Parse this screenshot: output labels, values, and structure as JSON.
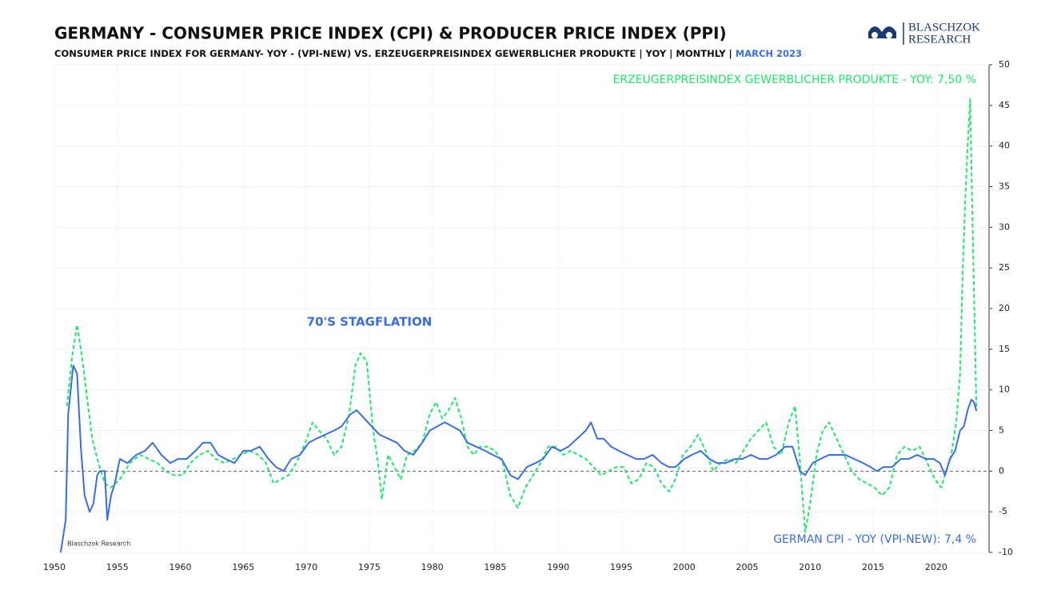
{
  "chart_data": {
    "type": "line",
    "title": "GERMANY - CONSUMER PRICE INDEX (CPI) & PRODUCER PRICE INDEX (PPI)",
    "subtitle": "CONSUMER PRICE INDEX FOR GERMANY- YOY - (VPI-NEW) VS. ERZEUGERPREISINDEX GEWERBLICHER PRODUKTE  | YOY | MONTHLY |",
    "date_label": "MARCH 2023",
    "logo": {
      "line1": "BLASCHZOK",
      "line2": "RESEARCH"
    },
    "watermark": "Blaschzok Research",
    "annotations": [
      {
        "text": "70'S STAGFLATION",
        "color": "#3a6ee0"
      }
    ],
    "xlim": [
      1950,
      2024.2
    ],
    "xticks": [
      1950,
      1955,
      1960,
      1965,
      1970,
      1975,
      1980,
      1985,
      1990,
      1995,
      2000,
      2005,
      2010,
      2015,
      2020
    ],
    "ylim": [
      -10,
      50
    ],
    "yticks": [
      -10,
      -5,
      0,
      5,
      10,
      15,
      20,
      25,
      30,
      35,
      40,
      45,
      50
    ],
    "grid": true,
    "series": [
      {
        "name": "GERMAN CPI - YOY (VPI-NEW): 7,4 %",
        "color": "#3a6ee0",
        "dash": false,
        "x": [
          1950.5,
          1950.9,
          1951.1,
          1951.5,
          1951.8,
          1952.1,
          1952.4,
          1952.8,
          1953.1,
          1953.4,
          1953.6,
          1954.0,
          1954.2,
          1954.5,
          1954.8,
          1955.2,
          1955.8,
          1956.5,
          1957.2,
          1957.8,
          1958.5,
          1959.2,
          1959.8,
          1960.5,
          1961.2,
          1961.8,
          1962.4,
          1963.0,
          1963.6,
          1964.3,
          1965.0,
          1965.6,
          1966.3,
          1967.0,
          1967.6,
          1968.2,
          1968.8,
          1969.5,
          1970.2,
          1970.8,
          1971.5,
          1972.2,
          1972.8,
          1973.5,
          1974.0,
          1974.6,
          1975.2,
          1975.8,
          1976.5,
          1977.2,
          1977.8,
          1978.5,
          1979.2,
          1979.8,
          1980.4,
          1981.0,
          1981.6,
          1982.2,
          1982.8,
          1983.5,
          1984.2,
          1984.8,
          1985.5,
          1986.2,
          1986.8,
          1987.5,
          1988.2,
          1988.8,
          1989.5,
          1990.2,
          1990.8,
          1991.5,
          1992.2,
          1992.6,
          1993.1,
          1993.6,
          1994.2,
          1994.8,
          1995.5,
          1996.2,
          1996.8,
          1997.5,
          1998.2,
          1998.8,
          1999.3,
          2000.0,
          2000.6,
          2001.3,
          2002.0,
          2002.6,
          2003.3,
          2004.0,
          2004.6,
          2005.3,
          2006.0,
          2006.6,
          2007.3,
          2008.0,
          2008.6,
          2009.2,
          2009.6,
          2010.2,
          2010.8,
          2011.5,
          2012.2,
          2012.8,
          2013.5,
          2014.2,
          2014.8,
          2015.3,
          2015.8,
          2016.5,
          2017.2,
          2017.8,
          2018.5,
          2019.2,
          2019.8,
          2020.3,
          2020.7,
          2021.1,
          2021.5,
          2021.9,
          2022.2,
          2022.5,
          2022.8,
          2023.0,
          2023.2
        ],
        "values": [
          -10,
          -6,
          7,
          13,
          12,
          3,
          -3,
          -5,
          -4,
          -0.5,
          0,
          0,
          -6,
          -3,
          -1.5,
          1.5,
          1,
          2,
          2.5,
          3.5,
          2,
          1,
          1.5,
          1.5,
          2.5,
          3.5,
          3.5,
          2,
          1.5,
          1,
          2.5,
          2.5,
          3,
          1.5,
          0.5,
          0,
          1.5,
          2,
          3.5,
          4,
          4.5,
          5,
          5.5,
          7,
          7.5,
          6.5,
          5.5,
          4.5,
          4,
          3.5,
          2.5,
          2,
          3.5,
          5,
          5.5,
          6,
          5.5,
          5,
          3.5,
          3,
          2.5,
          2,
          1.5,
          -0.5,
          -1,
          0.5,
          1,
          1.5,
          3,
          2.5,
          3,
          4,
          5,
          6,
          4,
          4,
          3,
          2.5,
          2,
          1.5,
          1.5,
          2,
          1,
          0.5,
          0.5,
          1.5,
          2,
          2.5,
          1.5,
          1,
          1,
          1.5,
          1.5,
          2,
          1.5,
          1.5,
          2,
          3,
          3,
          0,
          -0.5,
          1,
          1.5,
          2,
          2,
          2,
          1.5,
          1,
          0.5,
          0,
          0.5,
          0.5,
          1.5,
          1.5,
          2,
          1.5,
          1.5,
          1,
          -0.5,
          1.5,
          2.5,
          5,
          5.5,
          7.5,
          8.8,
          8.5,
          7.4
        ]
      },
      {
        "name": "ERZEUGERPREISINDEX GEWERBLICHER PRODUKTE - YOY: 7,50 %",
        "color": "#1ee86a",
        "dash": true,
        "x": [
          1951.0,
          1951.4,
          1951.8,
          1952.2,
          1952.6,
          1953.0,
          1953.5,
          1954.0,
          1954.5,
          1955.2,
          1956.0,
          1956.8,
          1957.5,
          1958.2,
          1958.8,
          1959.5,
          1960.2,
          1960.8,
          1961.5,
          1962.2,
          1962.8,
          1963.5,
          1964.2,
          1964.8,
          1965.5,
          1966.2,
          1966.8,
          1967.4,
          1968.0,
          1968.6,
          1969.2,
          1969.8,
          1970.5,
          1971.0,
          1971.6,
          1972.2,
          1972.8,
          1973.4,
          1973.9,
          1974.3,
          1974.8,
          1975.3,
          1975.7,
          1976.0,
          1976.5,
          1977.0,
          1977.5,
          1978.0,
          1978.6,
          1979.2,
          1979.8,
          1980.3,
          1980.8,
          1981.3,
          1981.8,
          1982.3,
          1982.8,
          1983.3,
          1983.8,
          1984.4,
          1985.0,
          1985.6,
          1986.2,
          1986.8,
          1987.4,
          1988.0,
          1988.6,
          1989.2,
          1989.8,
          1990.4,
          1991.0,
          1991.6,
          1992.2,
          1992.8,
          1993.4,
          1994.0,
          1994.6,
          1995.2,
          1995.8,
          1996.4,
          1997.0,
          1997.6,
          1998.2,
          1998.8,
          1999.3,
          1999.9,
          2000.5,
          2001.1,
          2001.7,
          2002.3,
          2002.9,
          2003.5,
          2004.1,
          2004.7,
          2005.3,
          2005.9,
          2006.5,
          2007.1,
          2007.7,
          2008.3,
          2008.8,
          2009.2,
          2009.6,
          2010.0,
          2010.5,
          2011.0,
          2011.5,
          2012.1,
          2012.7,
          2013.3,
          2013.9,
          2014.5,
          2015.1,
          2015.7,
          2016.3,
          2016.9,
          2017.5,
          2018.1,
          2018.7,
          2019.3,
          2019.9,
          2020.4,
          2020.8,
          2021.2,
          2021.6,
          2021.9,
          2022.1,
          2022.3,
          2022.5,
          2022.7,
          2022.9,
          2023.1,
          2023.2
        ],
        "values": [
          8,
          14,
          18,
          14,
          9,
          4,
          1,
          -1.5,
          -2,
          -1,
          1,
          2,
          1.5,
          1,
          0,
          -0.5,
          -0.5,
          1,
          2,
          2.5,
          1.5,
          1,
          1.5,
          2,
          2.5,
          2,
          1,
          -1.5,
          -1,
          -0.5,
          1,
          3,
          6,
          5,
          4,
          2,
          3,
          7,
          13,
          14.5,
          13.5,
          5,
          1,
          -3.5,
          2,
          0.5,
          -1,
          2,
          2.5,
          3.5,
          7,
          8.5,
          6.5,
          7.5,
          9,
          6.5,
          3,
          2,
          3,
          3,
          2.5,
          1,
          -3,
          -4.5,
          -2,
          -0.5,
          1,
          3,
          3,
          2,
          2.5,
          2,
          1.5,
          0.5,
          -0.5,
          0,
          0.5,
          0.5,
          -1.5,
          -1,
          1,
          0.5,
          -1.5,
          -2.5,
          -1,
          2,
          3,
          4.5,
          2.5,
          0,
          1,
          1.5,
          1,
          2.5,
          4,
          5,
          6,
          3,
          2,
          6,
          8,
          1,
          -7.5,
          -4,
          2,
          5,
          6,
          4,
          2,
          0,
          -1,
          -1.5,
          -2,
          -3,
          -2,
          2,
          3,
          2.5,
          3,
          1,
          -1,
          -2,
          0,
          2,
          6,
          12,
          24,
          33,
          40,
          45.8,
          30,
          15,
          7.5
        ]
      }
    ]
  }
}
